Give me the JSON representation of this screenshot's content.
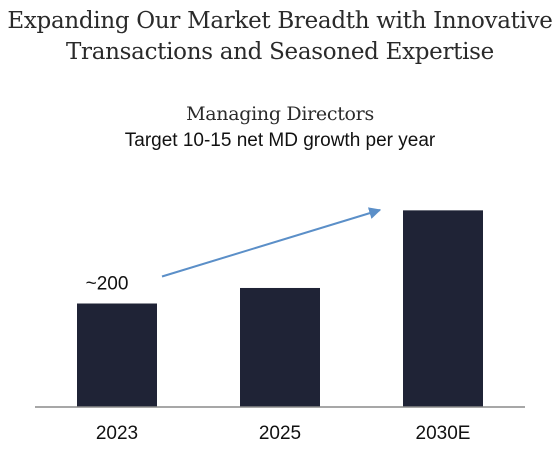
{
  "headline": {
    "line1": "Expanding Our Market Breadth with Innovative",
    "line2": "Transactions and Seasoned Expertise"
  },
  "chart_data": {
    "type": "bar",
    "title": "Managing Directors",
    "subtitle": "Target 10-15 net MD growth per year",
    "categories": [
      "2023",
      "2025",
      "2030E"
    ],
    "values": [
      200,
      230,
      380
    ],
    "data_labels": [
      "~200",
      "",
      ""
    ],
    "ylim": [
      0,
      400
    ],
    "grid": false,
    "legend": "none",
    "bar_color": "#1f2336",
    "arrow_color": "#5b8fc8",
    "trend_arrow": true
  }
}
